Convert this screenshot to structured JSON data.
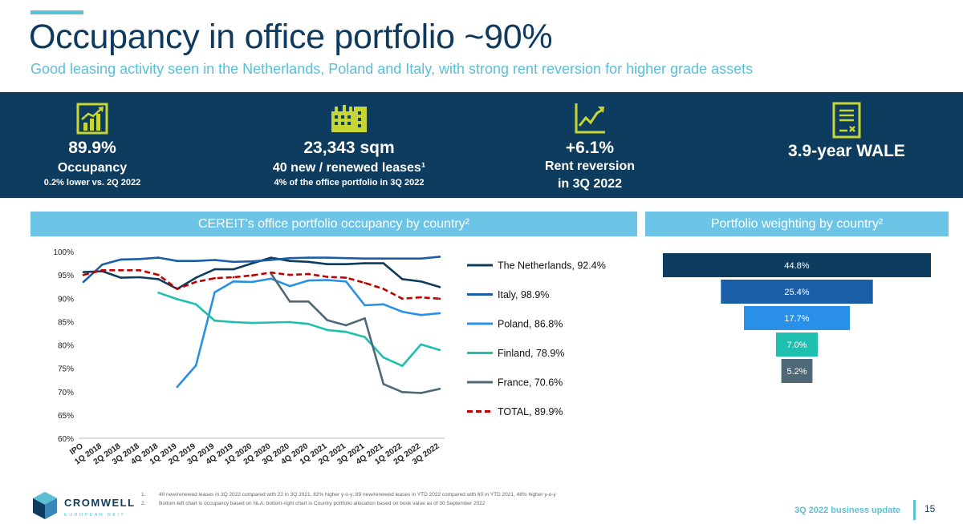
{
  "header": {
    "title": "Occupancy in office portfolio ~90%",
    "subtitle": "Good leasing activity seen in the Netherlands, Poland and Italy, with strong rent reversion for higher grade assets"
  },
  "kpis": [
    {
      "icon": "bar-chart-growth-icon",
      "value": "89.9%",
      "label": "Occupancy",
      "sub": "0.2% lower vs. 2Q 2022"
    },
    {
      "icon": "office-buildings-icon",
      "value": "23,343 sqm",
      "label": "40 new / renewed leases¹",
      "sub": "4% of the office portfolio in 3Q 2022"
    },
    {
      "icon": "line-chart-rising-icon",
      "value": "+6.1%",
      "label": "Rent reversion",
      "label2": "in 3Q 2022"
    },
    {
      "icon": "lease-document-icon",
      "value": "3.9-year WALE"
    }
  ],
  "colors": {
    "navy": "#0e3c5e",
    "accent": "#5bbfd6",
    "header_bar": "#6cc4e6",
    "netherlands": "#0e3c5e",
    "italy": "#1a5ea8",
    "poland": "#2a8fe6",
    "finland": "#1fbfb0",
    "france": "#4e6878",
    "total": "#c00000",
    "funnel_text": "#ffffff"
  },
  "sections": {
    "left_header": "CEREIT's office portfolio occupancy by country²",
    "right_header": "Portfolio weighting by country²"
  },
  "chart_data": [
    {
      "type": "line",
      "title": "CEREIT's office portfolio occupancy by country²",
      "categories": [
        "IPO",
        "1Q 2018",
        "2Q 2018",
        "3Q 2018",
        "4Q 2018",
        "1Q 2019",
        "2Q 2019",
        "3Q 2019",
        "4Q 2019",
        "1Q 2020",
        "2Q 2020",
        "3Q 2020",
        "4Q 2020",
        "1Q 2021",
        "2Q 2021",
        "3Q 2021",
        "4Q 2021",
        "1Q 2022",
        "2Q 2022",
        "3Q 2022"
      ],
      "ylim": [
        60,
        100
      ],
      "yticks": [
        "60%",
        "65%",
        "70%",
        "75%",
        "80%",
        "85%",
        "90%",
        "95%",
        "100%"
      ],
      "series": [
        {
          "name": "The Netherlands, 92.4%",
          "key": "netherlands",
          "dashed": false,
          "values": [
            95.6,
            95.8,
            94.4,
            94.5,
            94.1,
            92.0,
            94.4,
            96.2,
            96.2,
            97.5,
            98.7,
            98.0,
            97.8,
            97.3,
            97.3,
            97.5,
            97.5,
            94.1,
            93.6,
            92.4
          ]
        },
        {
          "name": "Italy, 98.9%",
          "key": "italy",
          "dashed": false,
          "values": [
            93.5,
            97.2,
            98.3,
            98.4,
            98.7,
            98.0,
            98.0,
            98.2,
            97.8,
            97.9,
            98.2,
            98.6,
            98.7,
            98.7,
            98.6,
            98.5,
            98.5,
            98.5,
            98.5,
            98.9
          ]
        },
        {
          "name": "Poland, 86.8%",
          "key": "poland",
          "dashed": false,
          "values": [
            null,
            null,
            null,
            null,
            null,
            71.0,
            75.6,
            91.3,
            93.6,
            93.5,
            94.2,
            92.6,
            93.8,
            93.9,
            93.6,
            88.5,
            88.7,
            87.1,
            86.4,
            86.8
          ]
        },
        {
          "name": "Finland, 78.9%",
          "key": "finland",
          "dashed": false,
          "values": [
            null,
            null,
            null,
            null,
            91.2,
            89.8,
            88.7,
            85.2,
            84.9,
            84.7,
            84.8,
            84.9,
            84.5,
            83.2,
            82.8,
            81.7,
            77.3,
            75.5,
            80.1,
            78.9
          ]
        },
        {
          "name": "France, 70.6%",
          "key": "france",
          "dashed": false,
          "values": [
            null,
            null,
            null,
            null,
            null,
            null,
            null,
            null,
            null,
            null,
            95.3,
            89.3,
            89.3,
            85.3,
            84.2,
            85.7,
            71.6,
            69.9,
            69.7,
            70.6
          ]
        },
        {
          "name": "TOTAL, 89.9%",
          "key": "total",
          "dashed": true,
          "values": [
            95.0,
            96.0,
            96.0,
            96.0,
            95.0,
            92.0,
            93.5,
            94.3,
            94.5,
            94.9,
            95.5,
            95.0,
            95.2,
            94.6,
            94.4,
            93.3,
            92.0,
            89.9,
            90.2,
            89.9
          ]
        }
      ]
    },
    {
      "type": "bar",
      "title": "Portfolio weighting by country²",
      "categories": [
        "The Netherlands",
        "Italy",
        "Poland",
        "Finland",
        "France"
      ],
      "values": [
        44.8,
        25.4,
        17.7,
        7.0,
        5.2
      ],
      "labels": [
        "44.8%",
        "25.4%",
        "17.7%",
        "7.0%",
        "5.2%"
      ],
      "color_keys": [
        "netherlands",
        "italy",
        "poland",
        "finland",
        "france"
      ]
    }
  ],
  "footnotes": [
    {
      "num": "1.",
      "text": "40 new/renewed leases in 3Q 2022 compared with 22 in 3Q 2021, 82% higher y-o-y; 89 new/renewed leases in YTD 2022 compared with 60 in YTD 2021, 48% higher y-o-y"
    },
    {
      "num": "2.",
      "text": "Bottom-left chart is occupancy based on NLA, bottom-right chart is Country portfolio allocation based on book value as of 30 September 2022"
    }
  ],
  "logo": {
    "name": "CROMWELL",
    "tagline": "EUROPEAN REIT"
  },
  "footer": {
    "text": "3Q 2022 business update",
    "page": "15"
  }
}
